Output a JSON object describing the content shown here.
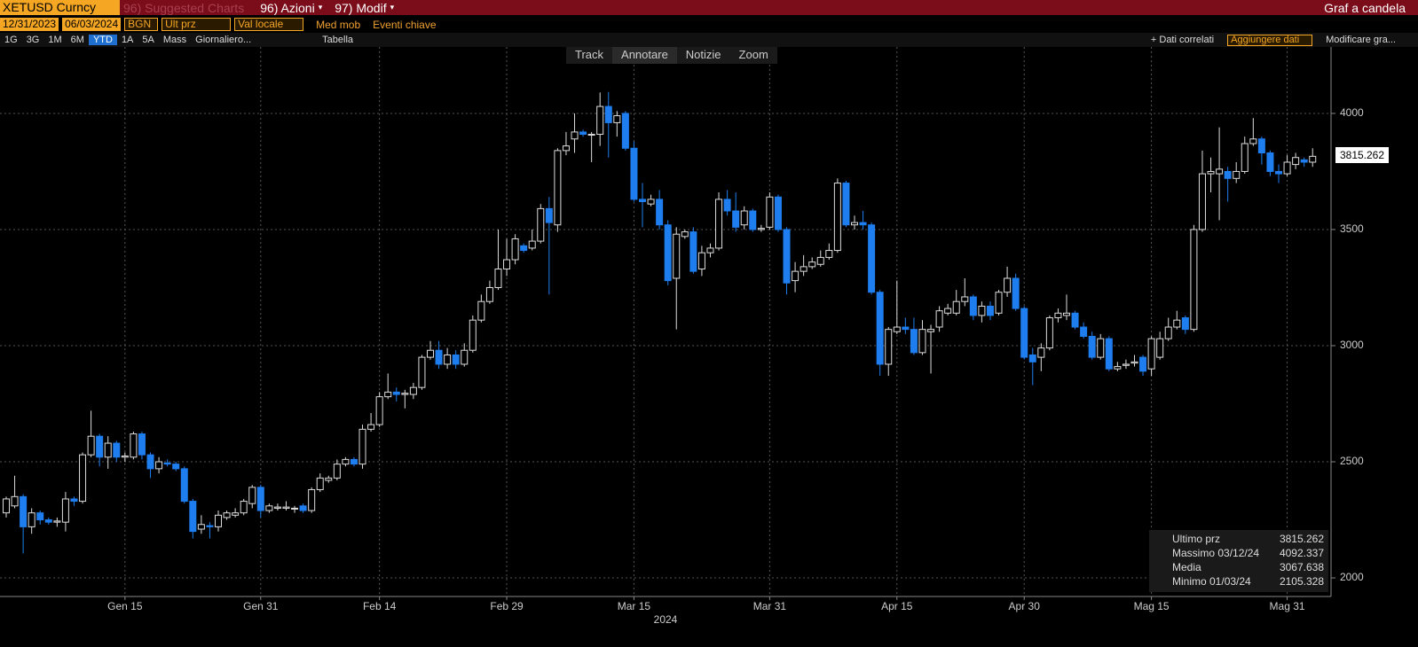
{
  "app": {
    "ticker": "XETUSD Curncy",
    "suggested": "96) Suggested Charts",
    "menu_azioni": "96) Azioni",
    "menu_modif": "97) Modif",
    "chart_kind": "Graf a candela",
    "start_date": "12/31/2023",
    "end_date": "06/03/2024",
    "source": "BGN",
    "field": "Ult prz",
    "currency": "Val locale",
    "moving_avg": "Med mob",
    "key_events": "Eventi chiave",
    "periods": [
      "1G",
      "3G",
      "1M",
      "6M",
      "YTD",
      "1A",
      "5A",
      "Mass"
    ],
    "frequency": "Giornaliero...",
    "table": "Tabella",
    "related": "+ Dati correlati",
    "add_data": "Aggiungere dati",
    "edit_chart": "Modificare gra...",
    "tools": [
      "Track",
      "Annotare",
      "Notizie",
      "Zoom"
    ],
    "legend": [
      {
        "label": "Ultimo prz",
        "value": "3815.262"
      },
      {
        "label": "Massimo 03/12/24",
        "value": "4092.337"
      },
      {
        "label": "Media",
        "value": "3067.638"
      },
      {
        "label": "Minimo 01/03/24",
        "value": "2105.328"
      }
    ]
  },
  "chart_data": {
    "type": "candlestick",
    "xlabel": "2024",
    "up_color": "#000000",
    "up_edge": "#dcdcdc",
    "down_color": "#1e7ef0",
    "grid": true,
    "ylim": [
      1920,
      4286
    ],
    "yticks": [
      2000,
      2500,
      3000,
      3500,
      4000
    ],
    "categories": [
      null,
      null,
      null,
      null,
      null,
      null,
      null,
      null,
      null,
      null,
      null,
      null,
      null,
      null,
      "Gen 15",
      null,
      null,
      null,
      null,
      null,
      null,
      null,
      null,
      null,
      null,
      null,
      null,
      null,
      null,
      null,
      "Gen 31",
      null,
      null,
      null,
      null,
      null,
      null,
      null,
      null,
      null,
      null,
      null,
      null,
      null,
      "Feb 14",
      null,
      null,
      null,
      null,
      null,
      null,
      null,
      null,
      null,
      null,
      null,
      null,
      null,
      null,
      "Feb 29",
      null,
      null,
      null,
      null,
      null,
      null,
      null,
      null,
      null,
      null,
      null,
      null,
      null,
      null,
      "Mar 15",
      null,
      null,
      null,
      null,
      null,
      null,
      null,
      null,
      null,
      null,
      null,
      null,
      null,
      null,
      null,
      "Mar 31",
      null,
      null,
      null,
      null,
      null,
      null,
      null,
      null,
      null,
      null,
      null,
      null,
      null,
      null,
      "Apr 15",
      null,
      null,
      null,
      null,
      null,
      null,
      null,
      null,
      null,
      null,
      null,
      null,
      null,
      null,
      "Apr 30",
      null,
      null,
      null,
      null,
      null,
      null,
      null,
      null,
      null,
      null,
      null,
      null,
      null,
      null,
      "Mag 15",
      null,
      null,
      null,
      null,
      null,
      null,
      null,
      null,
      null,
      null,
      null,
      null,
      null,
      null,
      null,
      "Mag 31",
      null,
      null,
      null
    ],
    "open": [
      2280,
      2310,
      2350,
      2220,
      2280,
      2250,
      2240,
      2240,
      2340,
      2330,
      2530,
      2610,
      2520,
      2580,
      2520,
      2520,
      2620,
      2530,
      2470,
      2495,
      2490,
      2470,
      2330,
      2210,
      2225,
      2220,
      2260,
      2270,
      2280,
      2320,
      2390,
      2290,
      2300,
      2300,
      2300,
      2310,
      2290,
      2380,
      2420,
      2430,
      2490,
      2510,
      2490,
      2640,
      2660,
      2780,
      2800,
      2790,
      2790,
      2820,
      2950,
      2980,
      2920,
      2960,
      2920,
      2980,
      3110,
      3190,
      3250,
      3330,
      3370,
      3430,
      3420,
      3450,
      3590,
      3520,
      3840,
      3890,
      3920,
      3910,
      3910,
      4030,
      3960,
      4000,
      3850,
      3630,
      3610,
      3630,
      3520,
      3290,
      3470,
      3490,
      3330,
      3400,
      3420,
      3630,
      3580,
      3520,
      3580,
      3500,
      3510,
      3640,
      3500,
      3280,
      3320,
      3340,
      3350,
      3380,
      3410,
      3700,
      3520,
      3530,
      3520,
      3230,
      2920,
      3060,
      3080,
      3070,
      2970,
      3060,
      3080,
      3140,
      3140,
      3190,
      3210,
      3130,
      3170,
      3140,
      3230,
      3290,
      3160,
      2960,
      2950,
      2990,
      3120,
      3130,
      3140,
      3080,
      3040,
      2950,
      3030,
      2900,
      2915,
      2925,
      2950,
      2900,
      2950,
      3030,
      3080,
      3120,
      3070,
      3500,
      3740,
      3740,
      3750,
      3720,
      3750,
      3870,
      3890,
      3830,
      3750,
      3740,
      3780,
      3800,
      3790
    ],
    "high": [
      2350,
      2440,
      2360,
      2300,
      2290,
      2260,
      2260,
      2370,
      2350,
      2540,
      2720,
      2620,
      2610,
      2590,
      2540,
      2630,
      2630,
      2540,
      2520,
      2510,
      2500,
      2480,
      2340,
      2270,
      2240,
      2290,
      2290,
      2300,
      2340,
      2400,
      2400,
      2320,
      2320,
      2330,
      2310,
      2320,
      2390,
      2450,
      2440,
      2510,
      2520,
      2520,
      2660,
      2710,
      2800,
      2880,
      2820,
      2810,
      2840,
      2960,
      3020,
      3020,
      2990,
      2980,
      3010,
      3130,
      3220,
      3280,
      3500,
      3460,
      3480,
      3440,
      3500,
      3610,
      3640,
      3850,
      3920,
      4000,
      3930,
      3920,
      4090,
      4092.337,
      4010,
      4010,
      3880,
      3700,
      3650,
      3670,
      3540,
      3510,
      3500,
      3510,
      3430,
      3440,
      3660,
      3670,
      3660,
      3600,
      3590,
      3520,
      3660,
      3650,
      3510,
      3360,
      3390,
      3380,
      3410,
      3440,
      3720,
      3710,
      3560,
      3580,
      3530,
      3240,
      3080,
      3280,
      3120,
      3120,
      3110,
      3090,
      3170,
      3180,
      3240,
      3290,
      3220,
      3190,
      3190,
      3240,
      3340,
      3310,
      3170,
      2990,
      3010,
      3130,
      3160,
      3220,
      3150,
      3100,
      3060,
      3050,
      3040,
      2930,
      2940,
      2960,
      2960,
      3040,
      3060,
      3120,
      3150,
      3130,
      3520,
      3840,
      3810,
      3940,
      3770,
      3790,
      3900,
      3980,
      3900,
      3840,
      3780,
      3820,
      3830,
      3810,
      3850
    ],
    "low": [
      2260,
      2300,
      2105.328,
      2190,
      2230,
      2230,
      2220,
      2200,
      2310,
      2320,
      2520,
      2480,
      2470,
      2500,
      2500,
      2510,
      2510,
      2430,
      2450,
      2480,
      2460,
      2320,
      2170,
      2190,
      2170,
      2200,
      2250,
      2260,
      2270,
      2300,
      2260,
      2280,
      2290,
      2290,
      2280,
      2280,
      2280,
      2370,
      2410,
      2420,
      2480,
      2480,
      2470,
      2630,
      2650,
      2770,
      2760,
      2730,
      2770,
      2810,
      2940,
      2900,
      2900,
      2900,
      2910,
      2970,
      3100,
      3180,
      3240,
      3300,
      3350,
      3400,
      3410,
      3440,
      3220,
      3490,
      3820,
      3830,
      3900,
      3790,
      3860,
      3810,
      3900,
      3840,
      3620,
      3510,
      3600,
      3500,
      3260,
      3070,
      3460,
      3310,
      3300,
      3380,
      3410,
      3560,
      3490,
      3500,
      3490,
      3490,
      3500,
      3490,
      3220,
      3230,
      3300,
      3330,
      3340,
      3370,
      3400,
      3510,
      3500,
      3500,
      3220,
      2870,
      2870,
      3050,
      3050,
      2960,
      2960,
      2880,
      3060,
      3130,
      3130,
      3170,
      3110,
      3100,
      3110,
      3130,
      3210,
      3150,
      2940,
      2830,
      2890,
      2980,
      3100,
      3110,
      3070,
      3030,
      2940,
      2940,
      2890,
      2890,
      2900,
      2910,
      2870,
      2870,
      2940,
      3020,
      3070,
      3050,
      3060,
      3490,
      3660,
      3540,
      3620,
      3700,
      3740,
      3860,
      3780,
      3730,
      3700,
      3730,
      3760,
      3770,
      3770
    ],
    "close": [
      2340,
      2350,
      2220,
      2280,
      2250,
      2240,
      2245,
      2340,
      2330,
      2530,
      2610,
      2520,
      2580,
      2520,
      2525,
      2620,
      2530,
      2470,
      2500,
      2490,
      2470,
      2330,
      2200,
      2230,
      2220,
      2270,
      2280,
      2280,
      2330,
      2390,
      2290,
      2310,
      2305,
      2305,
      2300,
      2290,
      2380,
      2430,
      2430,
      2490,
      2510,
      2490,
      2640,
      2660,
      2780,
      2800,
      2790,
      2795,
      2820,
      2950,
      2980,
      2920,
      2960,
      2920,
      2980,
      3110,
      3190,
      3250,
      3330,
      3370,
      3460,
      3410,
      3450,
      3590,
      3530,
      3840,
      3860,
      3920,
      3910,
      3910,
      4030,
      3960,
      3990,
      3850,
      3630,
      3620,
      3630,
      3520,
      3280,
      3480,
      3490,
      3320,
      3400,
      3420,
      3630,
      3580,
      3510,
      3580,
      3500,
      3505,
      3640,
      3500,
      3270,
      3320,
      3340,
      3360,
      3380,
      3410,
      3700,
      3520,
      3530,
      3520,
      3230,
      2920,
      3070,
      3080,
      3070,
      2970,
      3070,
      3070,
      3150,
      3160,
      3190,
      3210,
      3130,
      3170,
      3130,
      3230,
      3290,
      3160,
      2950,
      2930,
      2990,
      3120,
      3140,
      3140,
      3080,
      3040,
      2950,
      3030,
      2900,
      2910,
      2920,
      2930,
      2890,
      3030,
      3030,
      3080,
      3110,
      3070,
      3500,
      3740,
      3750,
      3760,
      3720,
      3750,
      3870,
      3890,
      3830,
      3750,
      3740,
      3790,
      3810,
      3790,
      3815.262
    ]
  }
}
